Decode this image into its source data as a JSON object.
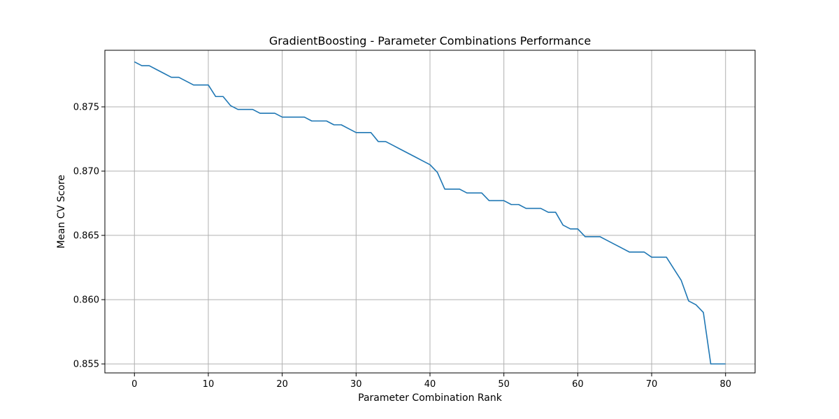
{
  "chart_data": {
    "type": "line",
    "title": "GradientBoosting - Parameter Combinations Performance",
    "xlabel": "Parameter Combination Rank",
    "ylabel": "Mean CV Score",
    "xlim": [
      -4,
      84
    ],
    "ylim": [
      0.8543,
      0.8794
    ],
    "xticks": [
      0,
      10,
      20,
      30,
      40,
      50,
      60,
      70,
      80
    ],
    "yticks": [
      0.855,
      0.86,
      0.865,
      0.87,
      0.875
    ],
    "ytick_labels": [
      "0.855",
      "0.860",
      "0.865",
      "0.870",
      "0.875"
    ],
    "grid": true,
    "series": [
      {
        "color": "#1f77b4",
        "x": [
          0,
          1,
          2,
          3,
          4,
          5,
          6,
          7,
          8,
          9,
          10,
          11,
          12,
          13,
          14,
          15,
          16,
          17,
          18,
          19,
          20,
          21,
          22,
          23,
          24,
          25,
          26,
          27,
          28,
          29,
          30,
          31,
          32,
          33,
          34,
          35,
          36,
          37,
          38,
          39,
          40,
          41,
          42,
          43,
          44,
          45,
          46,
          47,
          48,
          49,
          50,
          51,
          52,
          53,
          54,
          55,
          56,
          57,
          58,
          59,
          60,
          61,
          62,
          63,
          64,
          65,
          66,
          67,
          68,
          69,
          70,
          71,
          72,
          73,
          74,
          75,
          76,
          77,
          78,
          79,
          80
        ],
        "y": [
          0.8785,
          0.8782,
          0.8782,
          0.8779,
          0.8776,
          0.8773,
          0.8773,
          0.877,
          0.8767,
          0.8767,
          0.8767,
          0.8758,
          0.8758,
          0.8751,
          0.8748,
          0.8748,
          0.8748,
          0.8745,
          0.8745,
          0.8745,
          0.8742,
          0.8742,
          0.8742,
          0.8742,
          0.8739,
          0.8739,
          0.8739,
          0.8736,
          0.8736,
          0.8733,
          0.873,
          0.873,
          0.873,
          0.8723,
          0.8723,
          0.872,
          0.8717,
          0.8714,
          0.8711,
          0.8708,
          0.8705,
          0.8699,
          0.8686,
          0.8686,
          0.8686,
          0.8683,
          0.8683,
          0.8683,
          0.8677,
          0.8677,
          0.8677,
          0.8674,
          0.8674,
          0.8671,
          0.8671,
          0.8671,
          0.8668,
          0.8668,
          0.8658,
          0.8655,
          0.8655,
          0.8649,
          0.8649,
          0.8649,
          0.8646,
          0.8643,
          0.864,
          0.8637,
          0.8637,
          0.8637,
          0.8633,
          0.8633,
          0.8633,
          0.8624,
          0.8615,
          0.8599,
          0.8596,
          0.859,
          0.855,
          0.855,
          0.855
        ]
      }
    ]
  }
}
